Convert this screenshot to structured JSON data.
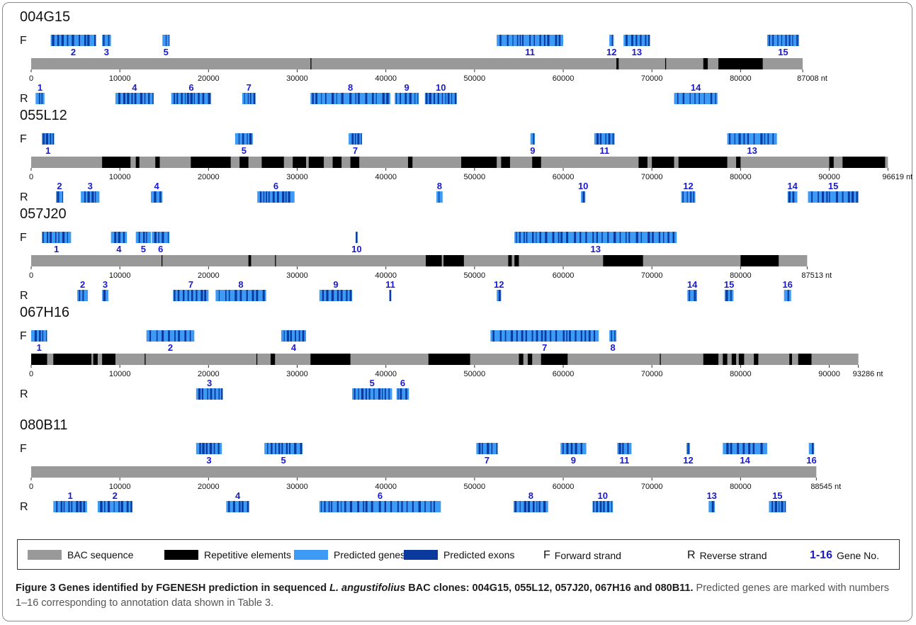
{
  "colors": {
    "bac": "#999999",
    "repeat": "#000000",
    "gene": "#3d9bf5",
    "exon": "#0a3a9e",
    "gene_no": "#1a1acc"
  },
  "axis_ticks": [
    "0",
    "10000",
    "20000",
    "30000",
    "40000",
    "50000",
    "60000",
    "70000",
    "80000",
    "90000"
  ],
  "strand_labels": {
    "forward": "F",
    "reverse": "R"
  },
  "clones": [
    {
      "name": "004G15",
      "length": 87008,
      "length_label": "87008 nt",
      "repeats": [
        [
          31500,
          31600
        ],
        [
          66000,
          66250
        ],
        [
          71500,
          71600
        ],
        [
          75800,
          76300
        ],
        [
          77500,
          82500
        ]
      ],
      "forward": [
        {
          "no": "2",
          "start": 2200,
          "end": 7300
        },
        {
          "no": "3",
          "start": 8000,
          "end": 9000
        },
        {
          "no": "5",
          "start": 14800,
          "end": 15600
        },
        {
          "no": "11",
          "start": 52500,
          "end": 60000
        },
        {
          "no": "12",
          "start": 65200,
          "end": 65700
        },
        {
          "no": "13",
          "start": 66800,
          "end": 69800
        },
        {
          "no": "15",
          "start": 83000,
          "end": 86600
        }
      ],
      "reverse": [
        {
          "no": "1",
          "start": 500,
          "end": 1500
        },
        {
          "no": "4",
          "start": 9500,
          "end": 13800
        },
        {
          "no": "6",
          "start": 15800,
          "end": 20300
        },
        {
          "no": "7",
          "start": 23800,
          "end": 25300
        },
        {
          "no": "8",
          "start": 31500,
          "end": 40500
        },
        {
          "no": "9",
          "start": 41000,
          "end": 43700
        },
        {
          "no": "10",
          "start": 44400,
          "end": 48000
        },
        {
          "no": "14",
          "start": 72500,
          "end": 77400
        }
      ]
    },
    {
      "name": "055L12",
      "length": 96619,
      "length_label": "96619 nt",
      "repeats": [
        [
          8000,
          11200
        ],
        [
          11800,
          12200
        ],
        [
          14000,
          14500
        ],
        [
          18000,
          22500
        ],
        [
          23500,
          24500
        ],
        [
          26000,
          28500
        ],
        [
          29500,
          31000
        ],
        [
          31300,
          33000
        ],
        [
          34000,
          35000
        ],
        [
          36000,
          37000
        ],
        [
          42500,
          43000
        ],
        [
          48500,
          52500
        ],
        [
          53000,
          54000
        ],
        [
          56500,
          57500
        ],
        [
          68500,
          69500
        ],
        [
          70000,
          72500
        ],
        [
          73000,
          78500
        ],
        [
          79500,
          80000
        ],
        [
          90000,
          90500
        ],
        [
          91500,
          96300
        ]
      ],
      "forward": [
        {
          "no": "1",
          "start": 1200,
          "end": 2600
        },
        {
          "no": "5",
          "start": 23000,
          "end": 25000
        },
        {
          "no": "7",
          "start": 35800,
          "end": 37300
        },
        {
          "no": "9",
          "start": 56300,
          "end": 56800
        },
        {
          "no": "11",
          "start": 63500,
          "end": 65800
        },
        {
          "no": "13",
          "start": 78500,
          "end": 84100
        }
      ],
      "reverse": [
        {
          "no": "2",
          "start": 2800,
          "end": 3600
        },
        {
          "no": "3",
          "start": 5600,
          "end": 7700
        },
        {
          "no": "4",
          "start": 13500,
          "end": 14800
        },
        {
          "no": "6",
          "start": 25500,
          "end": 29700
        },
        {
          "no": "8",
          "start": 45700,
          "end": 46400
        },
        {
          "no": "10",
          "start": 62000,
          "end": 62500
        },
        {
          "no": "12",
          "start": 73300,
          "end": 74900
        },
        {
          "no": "14",
          "start": 85300,
          "end": 86400
        },
        {
          "no": "15",
          "start": 87600,
          "end": 93300
        }
      ]
    },
    {
      "name": "057J20",
      "length": 87513,
      "length_label": "87513 nt",
      "repeats": [
        [
          14700,
          14800
        ],
        [
          24500,
          24800
        ],
        [
          27500,
          27600
        ],
        [
          44500,
          46300
        ],
        [
          46500,
          48800
        ],
        [
          53800,
          54200
        ],
        [
          54500,
          55000
        ],
        [
          64500,
          69000
        ],
        [
          80000,
          84300
        ]
      ],
      "forward": [
        {
          "no": "1",
          "start": 1200,
          "end": 4500
        },
        {
          "no": "4",
          "start": 9000,
          "end": 10800
        },
        {
          "no": "5",
          "start": 11800,
          "end": 13500
        },
        {
          "no": "6",
          "start": 13600,
          "end": 15600
        },
        {
          "no": "10",
          "start": 36600,
          "end": 36800
        },
        {
          "no": "13",
          "start": 54500,
          "end": 72800
        }
      ],
      "reverse": [
        {
          "no": "2",
          "start": 5200,
          "end": 6400
        },
        {
          "no": "3",
          "start": 8000,
          "end": 8700
        },
        {
          "no": "7",
          "start": 16000,
          "end": 20000
        },
        {
          "no": "8",
          "start": 20800,
          "end": 26500
        },
        {
          "no": "9",
          "start": 32500,
          "end": 36200
        },
        {
          "no": "11",
          "start": 40400,
          "end": 40600
        },
        {
          "no": "12",
          "start": 52500,
          "end": 53000
        },
        {
          "no": "14",
          "start": 74000,
          "end": 75100
        },
        {
          "no": "15",
          "start": 78200,
          "end": 79200
        },
        {
          "no": "16",
          "start": 84900,
          "end": 85700
        }
      ]
    },
    {
      "name": "067H16",
      "length": 93286,
      "length_label": "93286 nt",
      "repeats": [
        [
          0,
          1800
        ],
        [
          2500,
          6800
        ],
        [
          7000,
          7500
        ],
        [
          8000,
          9500
        ],
        [
          12800,
          12900
        ],
        [
          25400,
          25500
        ],
        [
          27000,
          27500
        ],
        [
          31500,
          36000
        ],
        [
          44800,
          49500
        ],
        [
          55000,
          55500
        ],
        [
          56000,
          56500
        ],
        [
          57500,
          60500
        ],
        [
          70900,
          71000
        ],
        [
          75800,
          77500
        ],
        [
          78000,
          78500
        ],
        [
          79000,
          79500
        ],
        [
          79800,
          80400
        ],
        [
          81500,
          82000
        ],
        [
          85500,
          85800
        ],
        [
          86500,
          88000
        ]
      ],
      "forward": [
        {
          "no": "1",
          "start": 0,
          "end": 1800
        },
        {
          "no": "2",
          "start": 13000,
          "end": 18400
        },
        {
          "no": "4",
          "start": 28200,
          "end": 31000
        },
        {
          "no": "7",
          "start": 51800,
          "end": 64000
        },
        {
          "no": "8",
          "start": 65200,
          "end": 66000
        }
      ],
      "reverse": [
        {
          "no": "3",
          "start": 18600,
          "end": 21600
        },
        {
          "no": "5",
          "start": 36200,
          "end": 40700
        },
        {
          "no": "6",
          "start": 41200,
          "end": 42600
        }
      ]
    },
    {
      "name": "080B11",
      "length": 88545,
      "length_label": "88545 nt",
      "repeats": [],
      "forward": [
        {
          "no": "3",
          "start": 18600,
          "end": 21500
        },
        {
          "no": "5",
          "start": 26300,
          "end": 30600
        },
        {
          "no": "7",
          "start": 50200,
          "end": 52600
        },
        {
          "no": "9",
          "start": 59700,
          "end": 62600
        },
        {
          "no": "11",
          "start": 66100,
          "end": 67700
        },
        {
          "no": "12",
          "start": 73900,
          "end": 74300
        },
        {
          "no": "14",
          "start": 78000,
          "end": 83000
        },
        {
          "no": "16",
          "start": 87700,
          "end": 88300
        }
      ],
      "reverse": [
        {
          "no": "1",
          "start": 2500,
          "end": 6300
        },
        {
          "no": "2",
          "start": 7500,
          "end": 11400
        },
        {
          "no": "4",
          "start": 22000,
          "end": 24600
        },
        {
          "no": "6",
          "start": 32500,
          "end": 46200
        },
        {
          "no": "8",
          "start": 54400,
          "end": 58300
        },
        {
          "no": "10",
          "start": 63300,
          "end": 65600
        },
        {
          "no": "13",
          "start": 76400,
          "end": 77100
        },
        {
          "no": "15",
          "start": 83200,
          "end": 85100
        }
      ]
    }
  ],
  "legend": {
    "bac": "BAC sequence",
    "repeats": "Repetitive elements",
    "genes": "Predicted genes",
    "exons": "Predicted exons",
    "forward_key": "F",
    "forward": "Forward strand",
    "reverse_key": "R",
    "reverse": "Reverse strand",
    "gene_no_key": "1-16",
    "gene_no": "Gene No."
  },
  "caption": {
    "title_pre": "Figure 3 Genes identified by FGENESH prediction in sequenced ",
    "species": "L. angustifolius",
    "title_post": " BAC clones: 004G15, 055L12, 057J20, 067H16 and 080B11.",
    "body": " Predicted genes are marked with numbers 1–16 corresponding to annotation data shown in Table 3."
  }
}
